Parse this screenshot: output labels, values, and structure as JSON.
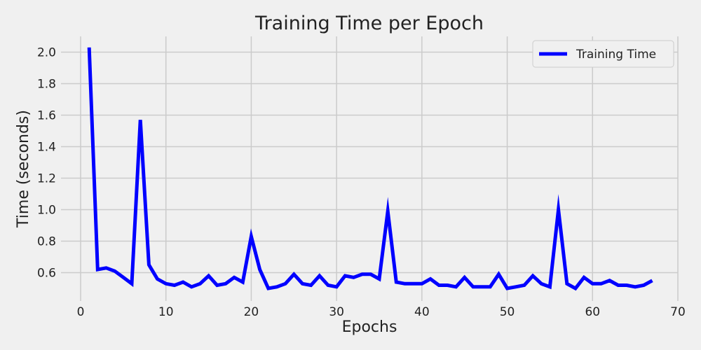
{
  "chart_data": {
    "type": "line",
    "title": "Training Time per Epoch",
    "xlabel": "Epochs",
    "ylabel": "Time (seconds)",
    "xlim": [
      -2.3,
      70
    ],
    "ylim": [
      0.42,
      2.1
    ],
    "xticks": [
      "0",
      "10",
      "20",
      "30",
      "40",
      "50",
      "60",
      "70"
    ],
    "yticks": [
      "0.6",
      "0.8",
      "1.0",
      "1.2",
      "1.4",
      "1.6",
      "1.8",
      "2.0"
    ],
    "grid": true,
    "legend_position": "top-right",
    "series": [
      {
        "name": "Training Time",
        "color": "#0000ff",
        "x": [
          1,
          2,
          3,
          4,
          5,
          6,
          7,
          8,
          9,
          10,
          11,
          12,
          13,
          14,
          15,
          16,
          17,
          18,
          19,
          20,
          21,
          22,
          23,
          24,
          25,
          26,
          27,
          28,
          29,
          30,
          31,
          32,
          33,
          34,
          35,
          36,
          37,
          38,
          39,
          40,
          41,
          42,
          43,
          44,
          45,
          46,
          47,
          48,
          49,
          50,
          51,
          52,
          53,
          54,
          55,
          56,
          57,
          58,
          59,
          60,
          61,
          62,
          63,
          64,
          65,
          66,
          67
        ],
        "values": [
          2.03,
          0.62,
          0.63,
          0.61,
          0.57,
          0.53,
          1.57,
          0.65,
          0.56,
          0.53,
          0.52,
          0.54,
          0.51,
          0.53,
          0.58,
          0.52,
          0.53,
          0.57,
          0.54,
          0.83,
          0.62,
          0.5,
          0.51,
          0.53,
          0.59,
          0.53,
          0.52,
          0.58,
          0.52,
          0.51,
          0.58,
          0.57,
          0.59,
          0.59,
          0.56,
          0.99,
          0.54,
          0.53,
          0.53,
          0.53,
          0.56,
          0.52,
          0.52,
          0.51,
          0.57,
          0.51,
          0.51,
          0.51,
          0.59,
          0.5,
          0.51,
          0.52,
          0.58,
          0.53,
          0.51,
          1.0,
          0.53,
          0.5,
          0.57,
          0.53,
          0.53,
          0.55,
          0.52,
          0.52,
          0.51,
          0.52,
          0.55
        ]
      }
    ]
  }
}
